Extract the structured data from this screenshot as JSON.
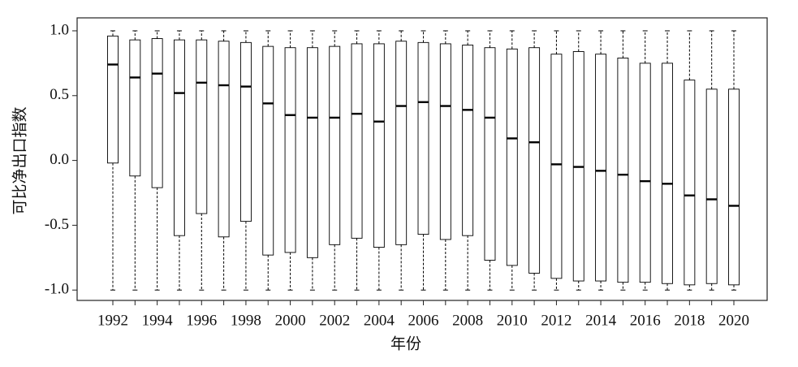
{
  "chart_data": {
    "type": "box",
    "x_label": "年份",
    "y_label": "可比净出口指数",
    "categories": [
      "1992",
      null,
      "1994",
      null,
      "1996",
      null,
      "1998",
      null,
      "2000",
      null,
      "2002",
      null,
      "2004",
      null,
      "2006",
      null,
      "2008",
      null,
      "2010",
      null,
      "2012",
      null,
      "2014",
      null,
      "2016",
      null,
      "2018",
      null,
      "2020"
    ],
    "min": [
      -1,
      -1,
      -1,
      -1,
      -1,
      -1,
      -1,
      -1,
      -1,
      -1,
      -1,
      -1,
      -1,
      -1,
      -1,
      -1,
      -1,
      -1,
      -1,
      -1,
      -1,
      -1,
      -1,
      -1,
      -1,
      -1,
      -1,
      -1,
      -1
    ],
    "q1": [
      -0.02,
      -0.12,
      -0.21,
      -0.58,
      -0.41,
      -0.59,
      -0.47,
      -0.73,
      -0.71,
      -0.75,
      -0.65,
      -0.6,
      -0.67,
      -0.65,
      -0.57,
      -0.61,
      -0.58,
      -0.77,
      -0.81,
      -0.87,
      -0.91,
      -0.93,
      -0.93,
      -0.94,
      -0.94,
      -0.95,
      -0.96,
      -0.95,
      -0.96
    ],
    "median": [
      0.74,
      0.64,
      0.67,
      0.52,
      0.6,
      0.58,
      0.57,
      0.44,
      0.35,
      0.33,
      0.33,
      0.36,
      0.3,
      0.42,
      0.45,
      0.42,
      0.39,
      0.33,
      0.17,
      0.14,
      -0.03,
      -0.05,
      -0.08,
      -0.11,
      -0.16,
      -0.18,
      -0.27,
      -0.3,
      -0.35
    ],
    "q3": [
      0.96,
      0.93,
      0.94,
      0.93,
      0.93,
      0.92,
      0.91,
      0.88,
      0.87,
      0.87,
      0.88,
      0.9,
      0.9,
      0.92,
      0.91,
      0.9,
      0.89,
      0.87,
      0.86,
      0.87,
      0.82,
      0.84,
      0.82,
      0.79,
      0.75,
      0.75,
      0.62,
      0.55,
      0.55
    ],
    "max": [
      1,
      1,
      1,
      1,
      1,
      1,
      1,
      1,
      1,
      1,
      1,
      1,
      1,
      1,
      1,
      1,
      1,
      1,
      1,
      1,
      1,
      1,
      1,
      1,
      1,
      1,
      1,
      1,
      1
    ],
    "color": "#000000",
    "ylim": [
      -1.08,
      1.1
    ],
    "yticks": [
      {
        "value": 1,
        "label": "1.0"
      },
      {
        "value": 0.5,
        "label": "0.5"
      },
      {
        "value": 0,
        "label": "0.0"
      },
      {
        "value": -0.5,
        "label": "-0.5"
      },
      {
        "value": -1,
        "label": "-1.0"
      }
    ]
  }
}
